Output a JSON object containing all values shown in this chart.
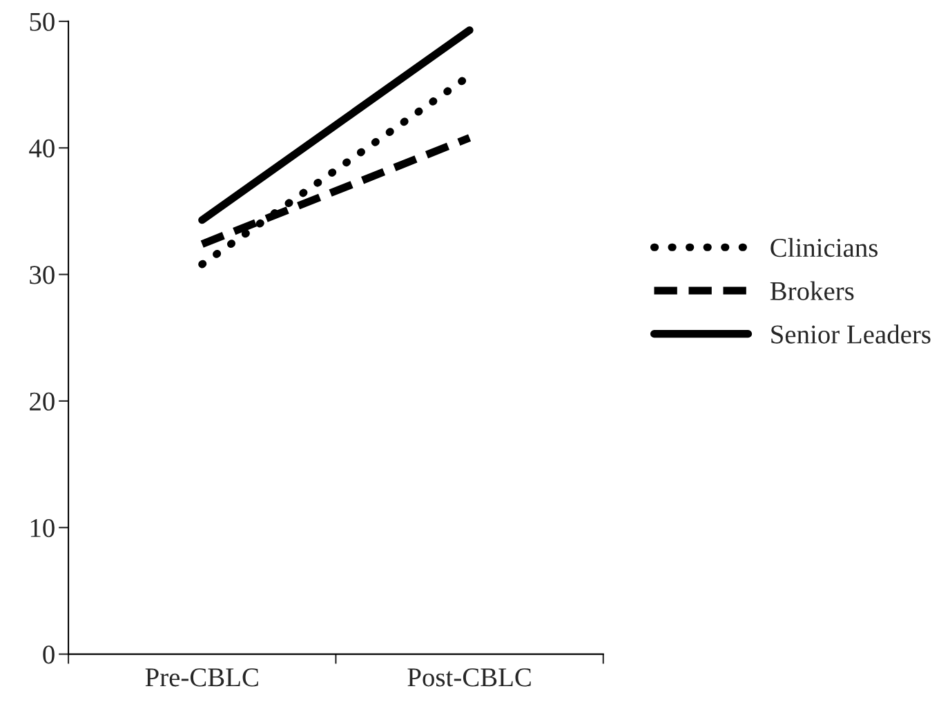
{
  "chart_data": {
    "type": "line",
    "categories": [
      "Pre-CBLC",
      "Post-CBLC"
    ],
    "series": [
      {
        "name": "Clinicians",
        "color": "#000000",
        "line_style": "dotted",
        "values": [
          30.8,
          45.7
        ]
      },
      {
        "name": "Brokers",
        "color": "#000000",
        "line_style": "dashed",
        "values": [
          32.4,
          40.8
        ]
      },
      {
        "name": "Senior Leaders",
        "color": "#000000",
        "line_style": "solid",
        "values": [
          34.3,
          49.3
        ]
      }
    ],
    "ylim": [
      0,
      50
    ],
    "yticks": [
      0,
      10,
      20,
      30,
      40,
      50
    ],
    "grid": false,
    "legend": "right",
    "marker": "none"
  }
}
